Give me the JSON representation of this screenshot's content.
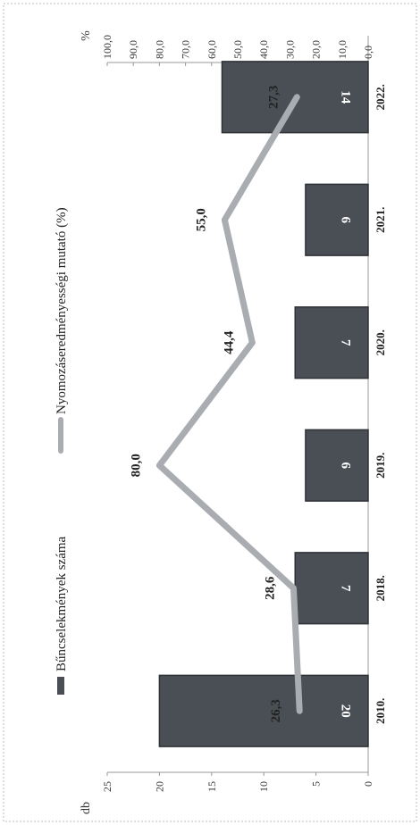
{
  "chart_data": {
    "type": "bar",
    "categories": [
      "2010.",
      "2018.",
      "2019.",
      "2020.",
      "2021.",
      "2022."
    ],
    "series": [
      {
        "name": "Bűncselekmények száma",
        "type": "bar",
        "axis": "left",
        "values": [
          20,
          7,
          6,
          7,
          6,
          14
        ],
        "color": "#4a4f55"
      },
      {
        "name": "Nyomozáseredményességi mutató (%)",
        "type": "line",
        "axis": "right",
        "values": [
          26.3,
          28.6,
          80.0,
          44.4,
          55.0,
          27.3
        ],
        "color": "#a9acb1"
      }
    ],
    "bar_labels": [
      "20",
      "7",
      "6",
      "7",
      "6",
      "14"
    ],
    "line_labels": [
      "26,3",
      "28,6",
      "80,0",
      "44,4",
      "55,0",
      "27,3"
    ],
    "left_axis": {
      "label": "db",
      "ylim": [
        0,
        25
      ],
      "ticks": [
        "0",
        "5",
        "10",
        "15",
        "20",
        "25"
      ]
    },
    "right_axis": {
      "label": "%",
      "ylim": [
        0,
        100
      ],
      "ticks": [
        "0,0",
        "10,0",
        "20,0",
        "30,0",
        "40,0",
        "50,0",
        "60,0",
        "70,0",
        "80,0",
        "90,0",
        "100,0"
      ]
    },
    "legend_position": "top",
    "rotated": "90deg-counterclockwise"
  }
}
